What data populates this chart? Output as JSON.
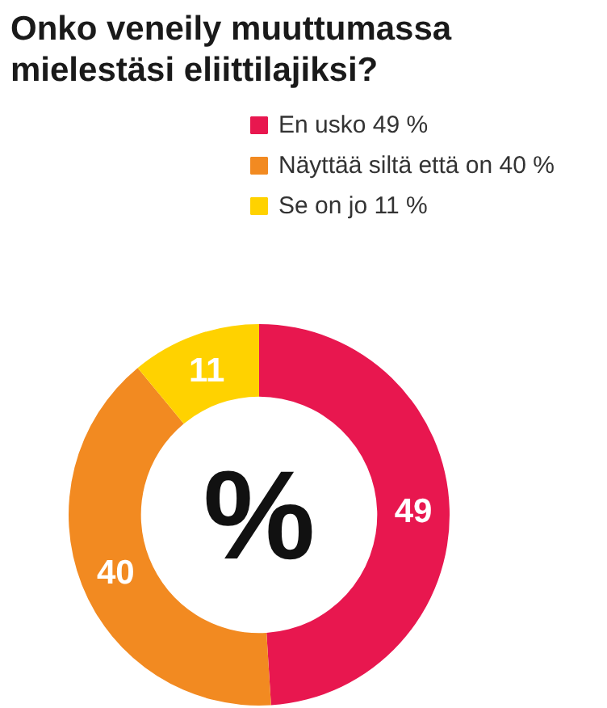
{
  "chart_data": {
    "type": "donut",
    "title": "Onko veneily muuttumassa mielestäsi eliittilajiksi?",
    "categories": [
      "En usko 49 %",
      "Näyttää siltä että on 40 %",
      "Se on jo 11 %"
    ],
    "values": [
      49,
      40,
      11
    ],
    "colors": [
      "#e8174f",
      "#f28a21",
      "#ffd200"
    ],
    "data_labels": true,
    "legend": "top right",
    "annotations": [
      "%"
    ]
  }
}
